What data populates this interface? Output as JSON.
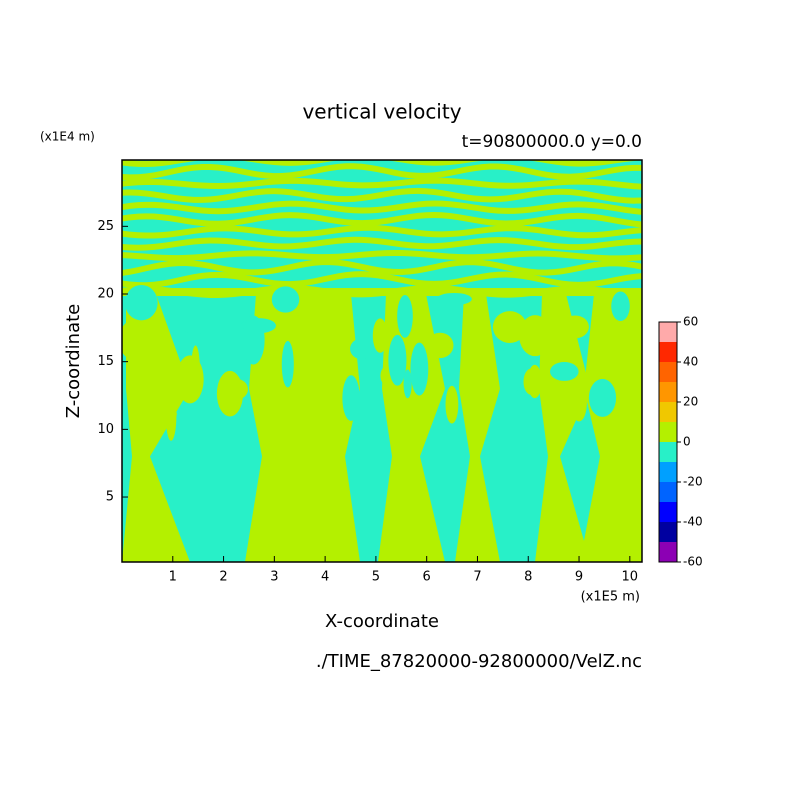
{
  "chart_data": {
    "type": "contour",
    "title": "vertical velocity",
    "subtitle": "t=90800000.0 y=0.0",
    "x_label": "X-coordinate",
    "y_label": "Z-coordinate",
    "x_unit": "(x1E5 m)",
    "y_unit": "(x1E4 m)",
    "footer": "./TIME_87820000-92800000/VelZ.nc",
    "xlim": [
      0,
      10.24
    ],
    "ylim": [
      0.2,
      29.9
    ],
    "xticks": [
      1,
      2,
      3,
      4,
      5,
      6,
      7,
      8,
      9,
      10
    ],
    "yticks": [
      5,
      10,
      15,
      20,
      25
    ],
    "colorbar": {
      "levels": [
        -60,
        -50,
        -40,
        -30,
        -20,
        -10,
        0,
        10,
        20,
        30,
        40,
        50,
        60
      ],
      "colors": [
        "#8c00b4",
        "#0000a0",
        "#0000ff",
        "#0064ff",
        "#00a0ff",
        "#28f0c8",
        "#b4f000",
        "#f0c800",
        "#ff9600",
        "#ff6400",
        "#ff2800",
        "#ffaaaa"
      ],
      "ticks": [
        -60,
        -40,
        -20,
        0,
        20,
        40,
        60
      ]
    }
  }
}
